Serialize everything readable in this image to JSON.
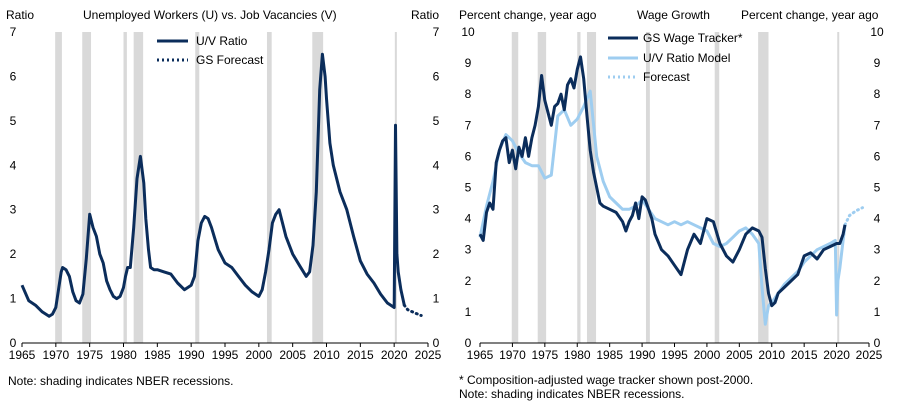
{
  "notes": {
    "left": "Note:  shading indicates NBER recessions.",
    "right_1": "* Composition-adjusted wage tracker shown post-2000.",
    "right_2": "Note: shading indicates NBER recessions."
  },
  "recessions": [
    [
      1969.9,
      1970.9
    ],
    [
      1973.9,
      1975.2
    ],
    [
      1980.0,
      1980.5
    ],
    [
      1981.5,
      1982.9
    ],
    [
      1990.6,
      1991.2
    ],
    [
      2001.2,
      2001.9
    ],
    [
      2007.9,
      2009.5
    ],
    [
      2020.1,
      2020.4
    ]
  ],
  "chart_data": [
    {
      "type": "line",
      "title": "Unemployed  Workers (U) vs. Job Vacancies (V)",
      "ylabel_left": "Ratio",
      "ylabel_right": "Ratio",
      "xlim": [
        1965,
        2025
      ],
      "ylim": [
        0,
        7
      ],
      "xticks": [
        1965,
        1970,
        1975,
        1980,
        1985,
        1990,
        1995,
        2000,
        2005,
        2010,
        2015,
        2020,
        2025
      ],
      "yticks": [
        0,
        1,
        2,
        3,
        4,
        5,
        6,
        7
      ],
      "legend_position": "top",
      "series": [
        {
          "name": "U/V Ratio",
          "color": "#0b2d5b",
          "style": "solid",
          "x": [
            1965,
            1966,
            1967,
            1968,
            1969,
            1969.5,
            1970,
            1970.4,
            1970.8,
            1971,
            1971.5,
            1972,
            1972.5,
            1973,
            1973.5,
            1974,
            1974.5,
            1975,
            1975.5,
            1976,
            1976.5,
            1977,
            1977.5,
            1978,
            1978.5,
            1979,
            1979.5,
            1980,
            1980.3,
            1980.6,
            1981,
            1981.5,
            1982,
            1982.5,
            1983,
            1983.3,
            1983.7,
            1984,
            1984.5,
            1985,
            1986,
            1987,
            1988,
            1989,
            1990,
            1990.5,
            1991,
            1991.5,
            1992,
            1992.5,
            1993,
            1993.5,
            1994,
            1995,
            1996,
            1997,
            1998,
            1999,
            2000,
            2000.5,
            2001,
            2001.5,
            2002,
            2002.5,
            2003,
            2003.5,
            2004,
            2005,
            2006,
            2007,
            2007.5,
            2008,
            2008.5,
            2009,
            2009.4,
            2009.8,
            2010,
            2010.5,
            2011,
            2012,
            2013,
            2014,
            2015,
            2016,
            2017,
            2018,
            2019,
            2019.5,
            2020,
            2020.2,
            2020.4,
            2020.6,
            2021,
            2021.5
          ],
          "y": [
            1.3,
            0.95,
            0.85,
            0.7,
            0.6,
            0.65,
            0.8,
            1.2,
            1.6,
            1.7,
            1.65,
            1.5,
            1.15,
            0.95,
            0.9,
            1.1,
            1.9,
            2.9,
            2.6,
            2.4,
            2.0,
            1.8,
            1.4,
            1.2,
            1.05,
            1.0,
            1.05,
            1.25,
            1.5,
            1.7,
            1.7,
            2.6,
            3.7,
            4.2,
            3.6,
            2.8,
            2.1,
            1.7,
            1.65,
            1.65,
            1.6,
            1.55,
            1.35,
            1.2,
            1.3,
            1.5,
            2.3,
            2.7,
            2.85,
            2.8,
            2.6,
            2.35,
            2.1,
            1.8,
            1.7,
            1.5,
            1.3,
            1.15,
            1.05,
            1.2,
            1.6,
            2.1,
            2.7,
            2.9,
            3.0,
            2.7,
            2.4,
            2.0,
            1.75,
            1.5,
            1.6,
            2.2,
            3.4,
            5.7,
            6.5,
            6.0,
            5.5,
            4.5,
            4.0,
            3.4,
            3.0,
            2.4,
            1.85,
            1.55,
            1.35,
            1.1,
            0.9,
            0.85,
            0.8,
            4.9,
            2.0,
            1.6,
            1.2,
            0.85
          ]
        },
        {
          "name": "GS Forecast",
          "color": "#0b2d5b",
          "style": "dotted",
          "x": [
            2021.5,
            2022,
            2023,
            2024
          ],
          "y": [
            0.85,
            0.75,
            0.68,
            0.62
          ]
        }
      ]
    },
    {
      "type": "line",
      "title": "Wage Growth",
      "ylabel_left": "Percent change, year ago",
      "ylabel_right": "Percent change, year ago",
      "xlim": [
        1965,
        2025
      ],
      "ylim": [
        0,
        10
      ],
      "xticks": [
        1965,
        1970,
        1975,
        1980,
        1985,
        1990,
        1995,
        2000,
        2005,
        2010,
        2015,
        2020,
        2025
      ],
      "yticks": [
        0,
        1,
        2,
        3,
        4,
        5,
        6,
        7,
        8,
        9,
        10
      ],
      "legend_position": "top",
      "series": [
        {
          "name": "GS Wage Tracker*",
          "color": "#0b2d5b",
          "style": "solid",
          "x": [
            1965,
            1965.5,
            1966,
            1966.5,
            1967,
            1967.5,
            1968,
            1968.5,
            1969,
            1969.5,
            1970,
            1970.5,
            1971,
            1971.5,
            1972,
            1972.5,
            1973,
            1973.5,
            1974,
            1974.5,
            1975,
            1975.5,
            1976,
            1976.5,
            1977,
            1977.5,
            1978,
            1978.5,
            1979,
            1979.5,
            1980,
            1980.5,
            1981,
            1981.5,
            1982,
            1982.5,
            1983,
            1983.5,
            1984,
            1985,
            1986,
            1987,
            1987.5,
            1988,
            1988.5,
            1989,
            1989.5,
            1990,
            1990.5,
            1991,
            1991.5,
            1992,
            1993,
            1994,
            1995,
            1996,
            1997,
            1998,
            1999,
            2000,
            2001,
            2002,
            2003,
            2004,
            2005,
            2006,
            2007,
            2008,
            2008.5,
            2009,
            2009.5,
            2010,
            2010.5,
            2011,
            2012,
            2013,
            2014,
            2015,
            2016,
            2017,
            2018,
            2019,
            2020,
            2020.5,
            2021,
            2021.3
          ],
          "y": [
            3.5,
            3.3,
            4.2,
            4.5,
            4.3,
            5.8,
            6.2,
            6.5,
            6.6,
            5.8,
            6.2,
            5.6,
            6.3,
            6.0,
            6.6,
            6.0,
            6.6,
            7.0,
            7.6,
            8.6,
            7.8,
            7.4,
            7.0,
            7.6,
            7.7,
            8.0,
            7.5,
            8.3,
            8.5,
            8.2,
            8.8,
            9.2,
            8.5,
            7.3,
            6.2,
            5.5,
            5.0,
            4.5,
            4.4,
            4.3,
            4.2,
            3.9,
            3.6,
            3.9,
            4.1,
            4.5,
            4.0,
            4.7,
            4.6,
            4.3,
            4.0,
            3.5,
            3.0,
            2.8,
            2.5,
            2.2,
            3.0,
            3.5,
            3.2,
            4.0,
            3.9,
            3.2,
            2.8,
            2.6,
            3.0,
            3.5,
            3.7,
            3.6,
            3.4,
            2.4,
            1.6,
            1.2,
            1.3,
            1.6,
            1.8,
            2.0,
            2.2,
            2.8,
            2.9,
            2.7,
            3.0,
            3.1,
            3.2,
            3.2,
            3.5,
            3.8
          ]
        },
        {
          "name": "U/V Ratio Model",
          "color": "#9ecdf0",
          "style": "solid",
          "x": [
            1965,
            1966,
            1967,
            1968,
            1969,
            1970,
            1971,
            1972,
            1973,
            1974,
            1975,
            1976,
            1977,
            1978,
            1979,
            1980,
            1981,
            1982,
            1983,
            1984,
            1985,
            1986,
            1987,
            1988,
            1989,
            1990,
            1991,
            1992,
            1993,
            1994,
            1995,
            1996,
            1997,
            1998,
            1999,
            2000,
            2001,
            2002,
            2003,
            2004,
            2005,
            2006,
            2007,
            2008,
            2008.5,
            2009,
            2009.5,
            2010,
            2011,
            2012,
            2013,
            2014,
            2015,
            2016,
            2017,
            2018,
            2019,
            2019.8,
            2020,
            2020.2,
            2020.5,
            2021,
            2021.3
          ],
          "y": [
            3.4,
            4.4,
            5.2,
            6.2,
            6.7,
            6.5,
            6.1,
            5.8,
            5.7,
            5.7,
            5.3,
            5.4,
            7.3,
            7.5,
            7.0,
            7.2,
            7.6,
            8.1,
            6.0,
            5.2,
            4.7,
            4.5,
            4.3,
            4.3,
            4.4,
            4.6,
            4.3,
            4.0,
            3.9,
            3.8,
            3.9,
            3.8,
            3.9,
            3.8,
            3.7,
            3.6,
            3.2,
            3.1,
            3.2,
            3.4,
            3.6,
            3.7,
            3.5,
            3.2,
            1.8,
            0.6,
            1.2,
            1.3,
            1.6,
            1.9,
            2.1,
            2.3,
            2.6,
            2.8,
            3.0,
            3.1,
            3.2,
            3.3,
            0.9,
            2.0,
            2.4,
            3.3,
            3.8
          ]
        },
        {
          "name": "Forecast",
          "color": "#9ecdf0",
          "style": "dotted",
          "x": [
            2021.3,
            2022,
            2023,
            2024
          ],
          "y": [
            3.8,
            4.1,
            4.25,
            4.35
          ]
        }
      ]
    }
  ]
}
